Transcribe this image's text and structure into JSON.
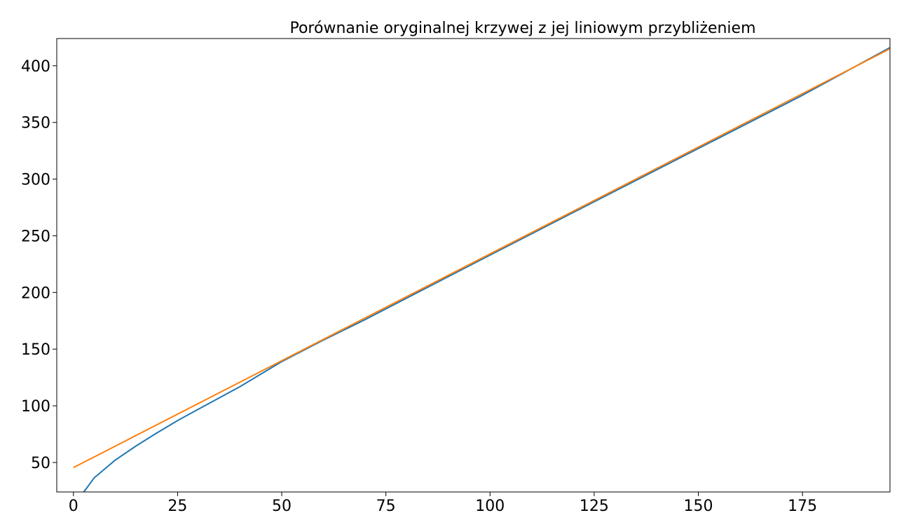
{
  "chart_data": {
    "type": "line",
    "title": "Porównanie oryginalnej krzywej z jej liniowym przybliżeniem",
    "xlabel": "",
    "ylabel": "",
    "xlim": [
      -4,
      196
    ],
    "ylim": [
      24,
      424
    ],
    "grid": false,
    "xticks": [
      0,
      25,
      50,
      75,
      100,
      125,
      150,
      175
    ],
    "yticks": [
      50,
      100,
      150,
      200,
      250,
      300,
      350,
      400
    ],
    "series": [
      {
        "color": "#1f77b4",
        "x": [
          2.5,
          5,
          10,
          15,
          20,
          25,
          30,
          40,
          50,
          60,
          70,
          80,
          100,
          125,
          150,
          175,
          196
        ],
        "y": [
          24,
          36.5,
          52,
          64.5,
          76,
          87,
          97,
          117,
          139,
          158,
          176,
          195,
          233,
          280,
          327,
          374,
          416
        ]
      },
      {
        "color": "#ff7f0e",
        "x": [
          0,
          196
        ],
        "y": [
          45.5,
          415
        ]
      }
    ]
  }
}
